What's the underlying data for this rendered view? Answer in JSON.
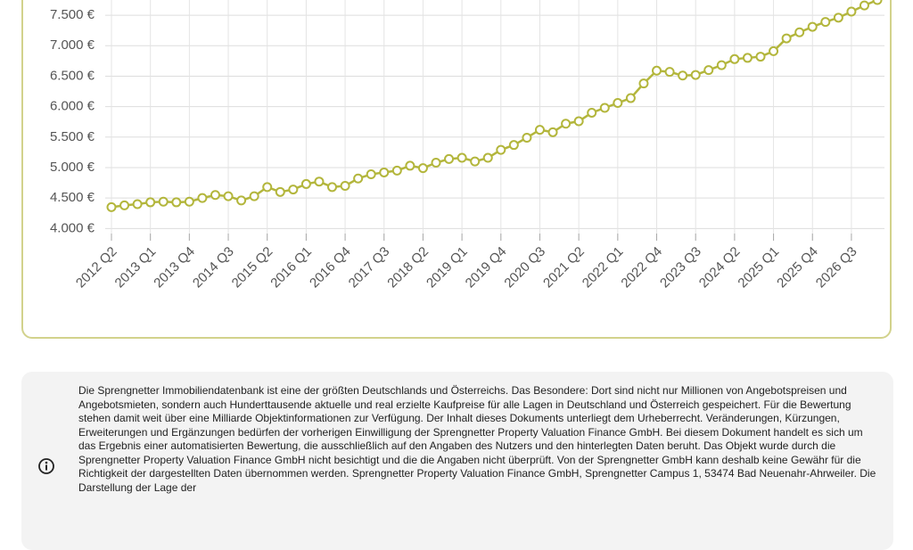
{
  "chart_data": {
    "type": "line",
    "categories": [
      "2012 Q2",
      null,
      null,
      "2013 Q1",
      null,
      null,
      "2013 Q4",
      null,
      null,
      "2014 Q3",
      null,
      null,
      "2015 Q2",
      null,
      null,
      "2016 Q1",
      null,
      null,
      "2016 Q4",
      null,
      null,
      "2017 Q3",
      null,
      null,
      "2018 Q2",
      null,
      null,
      "2019 Q1",
      null,
      null,
      "2019 Q4",
      null,
      null,
      "2020 Q3",
      null,
      null,
      "2021 Q2",
      null,
      null,
      "2022 Q1",
      null,
      null,
      "2022 Q4",
      null,
      null,
      "2023 Q3",
      null,
      null,
      "2024 Q2",
      null,
      null,
      "2025 Q1",
      null,
      null,
      "2025 Q4",
      null,
      null,
      "2026 Q3",
      null,
      null
    ],
    "values": [
      4350,
      4380,
      4400,
      4430,
      4440,
      4430,
      4440,
      4500,
      4550,
      4530,
      4460,
      4530,
      4680,
      4600,
      4640,
      4730,
      4770,
      4680,
      4700,
      4820,
      4890,
      4920,
      4950,
      5030,
      4990,
      5080,
      5140,
      5160,
      5100,
      5160,
      5290,
      5370,
      5490,
      5620,
      5580,
      5720,
      5760,
      5900,
      5980,
      6060,
      6140,
      6380,
      6590,
      6570,
      6510,
      6520,
      6600,
      6680,
      6780,
      6800,
      6820,
      6910,
      7120,
      7220,
      7310,
      7390,
      7460,
      7560,
      7660,
      7750
    ],
    "color": "#b3b63c",
    "ylim": [
      3800,
      7750
    ],
    "yticks": [
      {
        "value": 4000,
        "label": "4.000 €"
      },
      {
        "value": 4500,
        "label": "4.500 €"
      },
      {
        "value": 5000,
        "label": "5.000 €"
      },
      {
        "value": 5500,
        "label": "5.500 €"
      },
      {
        "value": 6000,
        "label": "6.000 €"
      },
      {
        "value": 6500,
        "label": "6.500 €"
      },
      {
        "value": 7000,
        "label": "7.000 €"
      },
      {
        "value": 7500,
        "label": "7.500 €"
      }
    ],
    "grid": true
  },
  "disclaimer": "Die Sprengnetter Immobiliendatenbank ist eine der größten Deutschlands und Österreichs. Das Besondere: Dort sind nicht nur Millionen von Angebotspreisen und Angebotsmieten, sondern auch Hunderttausende aktuelle und real erzielte Kaufpreise für alle Lagen in Deutschland und Österreich gespeichert. Für die Bewertung stehen damit weit über eine Milliarde Objektinformationen zur Verfügung. Der Inhalt dieses Dokuments unterliegt dem Urheberrecht. Veränderungen, Kürzungen, Erweiterungen und Ergänzungen bedürfen der vorherigen Einwilligung der Sprengnetter Property Valuation Finance GmbH. Bei diesem Dokument handelt es sich um das Ergebnis einer automatisierten Bewertung, die ausschließlich auf den Angaben des Nutzers und den hinterlegten Daten beruht. Das Objekt wurde durch die Sprengnetter Property Valuation Finance GmbH nicht besichtigt und die die Angaben nicht überprüft. Von der Sprengnetter GmbH kann deshalb keine Gewähr für die Richtigkeit der dargestellten Daten übernommen werden. Sprengnetter Property Valuation Finance GmbH, Sprengnetter Campus 1, 53474 Bad Neuenahr-Ahrweiler. Die Darstellung der Lage der"
}
